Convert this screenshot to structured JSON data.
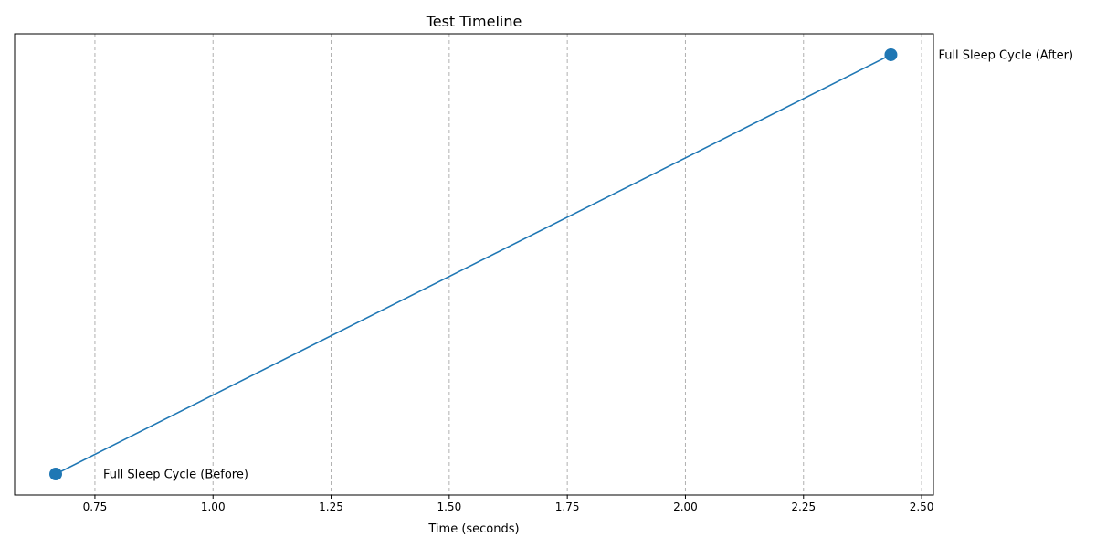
{
  "chart_data": {
    "type": "line",
    "title": "Test Timeline",
    "xlabel": "Time (seconds)",
    "ylabel": "",
    "xlim": [
      0.58,
      2.525
    ],
    "ylim": [
      -0.05,
      1.05
    ],
    "xticks": [
      0.75,
      1.0,
      1.25,
      1.5,
      1.75,
      2.0,
      2.25,
      2.5
    ],
    "xtick_labels": [
      "0.75",
      "1.00",
      "1.25",
      "1.50",
      "1.75",
      "2.00",
      "2.25",
      "2.50"
    ],
    "grid": "x-dashed",
    "color": "#1f77b4",
    "points": [
      {
        "x": 0.667,
        "y": 0.0,
        "label": "Full Sleep Cycle (Before)"
      },
      {
        "x": 2.435,
        "y": 1.0,
        "label": "Full Sleep Cycle (After)"
      }
    ]
  }
}
